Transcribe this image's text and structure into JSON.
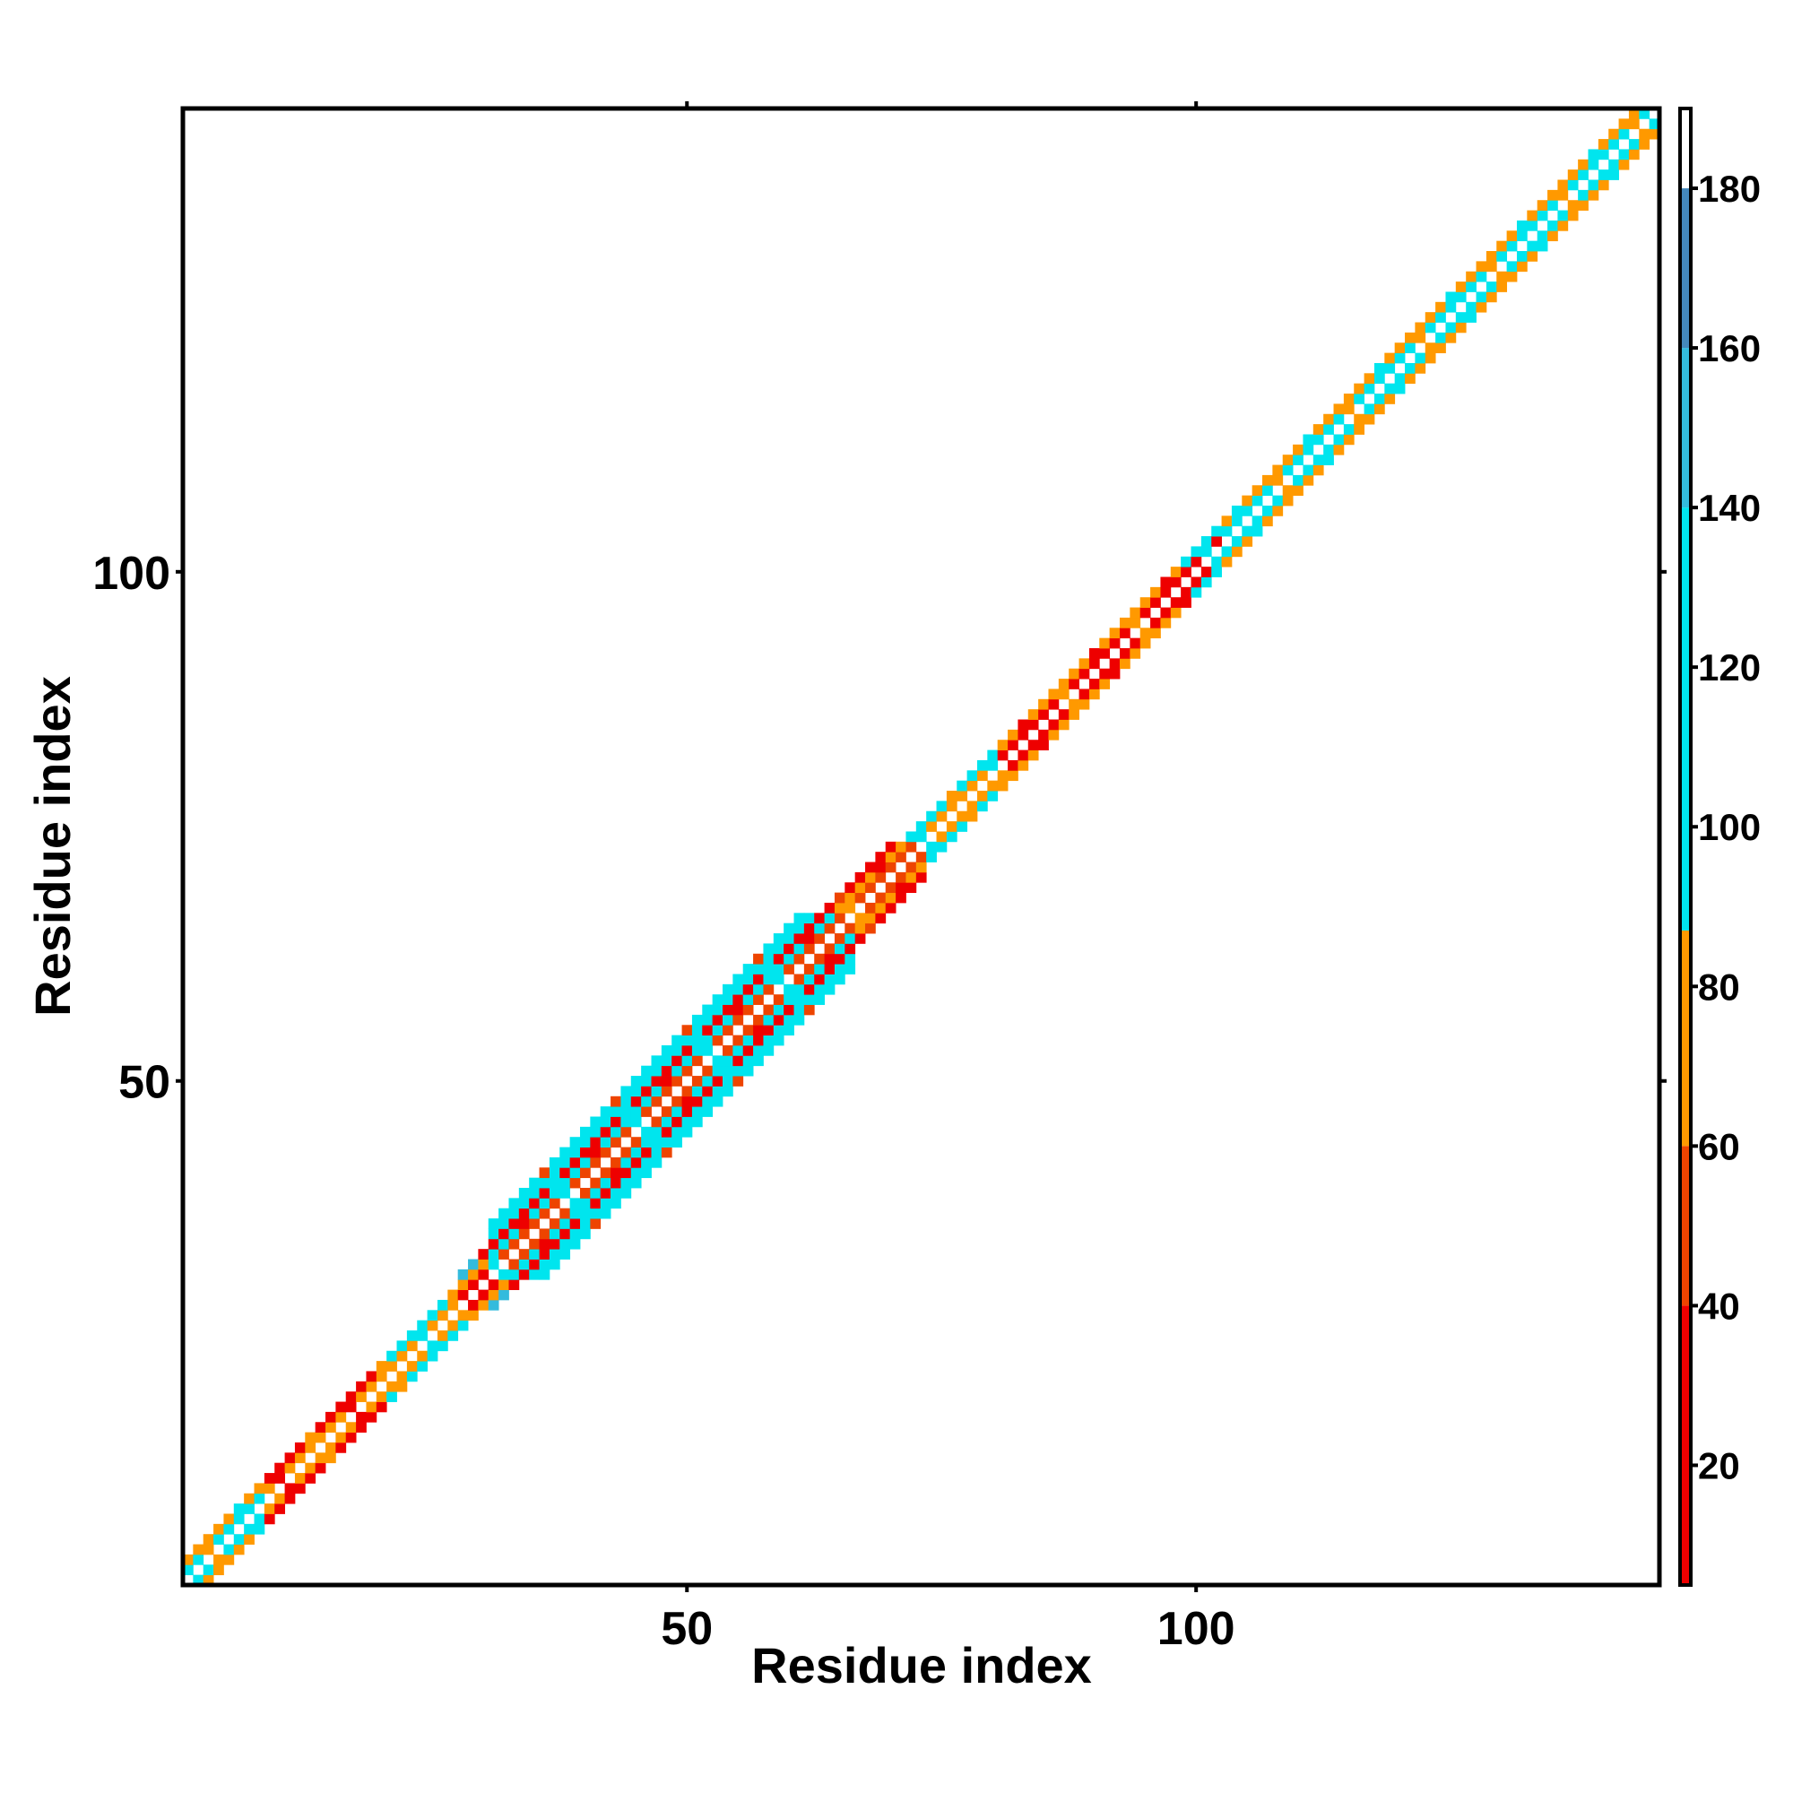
{
  "chart_data": {
    "type": "heatmap",
    "title": "",
    "xlabel": "Residue index",
    "ylabel": "Residue index",
    "xlim": [
      1,
      145
    ],
    "ylim": [
      1,
      145
    ],
    "x_ticks": [
      50,
      100
    ],
    "y_ticks": [
      50,
      100
    ],
    "x_tick_labels": [
      "50",
      "100"
    ],
    "y_tick_labels": [
      "50",
      "100"
    ],
    "grid": false,
    "legend": "colorbar-right",
    "colorbar": {
      "range": [
        5,
        190
      ],
      "ticks": [
        20,
        40,
        60,
        80,
        100,
        120,
        140,
        160,
        180
      ],
      "tick_labels": [
        "20",
        "40",
        "60",
        "80",
        "100",
        "120",
        "140",
        "160",
        "180"
      ],
      "stops": [
        {
          "from": 5,
          "to": 40,
          "color": "#ee0000"
        },
        {
          "from": 40,
          "to": 60,
          "color": "#ee4400"
        },
        {
          "from": 60,
          "to": 87,
          "color": "#ff9900"
        },
        {
          "from": 87,
          "to": 140,
          "color": "#00e5ee"
        },
        {
          "from": 140,
          "to": 160,
          "color": "#33bbdd"
        },
        {
          "from": 160,
          "to": 180,
          "color": "#4488bb"
        },
        {
          "from": 180,
          "to": 190,
          "color": "#ffffff"
        }
      ]
    },
    "band_segments": [
      {
        "from": 1,
        "to": 8,
        "half_width": 2,
        "pattern": [
          "#ffffff",
          "#00e5ee",
          "#ff9900"
        ]
      },
      {
        "from": 8,
        "to": 20,
        "half_width": 2,
        "pattern": [
          "#ffffff",
          "#ff9900",
          "#ee0000"
        ]
      },
      {
        "from": 20,
        "to": 27,
        "half_width": 2,
        "pattern": [
          "#ffffff",
          "#ff9900",
          "#00e5ee"
        ]
      },
      {
        "from": 27,
        "to": 30,
        "half_width": 3,
        "pattern": [
          "#ffffff",
          "#ee0000",
          "#ff9900",
          "#33bbdd"
        ]
      },
      {
        "from": 30,
        "to": 66,
        "half_width": 5,
        "pattern": [
          "#ffffff",
          "#ee4400",
          "#00e5ee",
          "#ee0000",
          "#00e5ee",
          "#00e5ee"
        ]
      },
      {
        "from": 66,
        "to": 73,
        "half_width": 3,
        "pattern": [
          "#ffffff",
          "#ee4400",
          "#ff9900",
          "#ee0000"
        ]
      },
      {
        "from": 73,
        "to": 80,
        "half_width": 2,
        "pattern": [
          "#ffffff",
          "#ff9900",
          "#00e5ee"
        ]
      },
      {
        "from": 80,
        "to": 98,
        "half_width": 2,
        "pattern": [
          "#ffffff",
          "#ee0000",
          "#ff9900"
        ]
      },
      {
        "from": 98,
        "to": 102,
        "half_width": 2,
        "pattern": [
          "#ffffff",
          "#ee0000",
          "#00e5ee"
        ]
      },
      {
        "from": 102,
        "to": 145,
        "half_width": 2,
        "pattern": [
          "#ffffff",
          "#00e5ee",
          "#ff9900"
        ]
      }
    ]
  }
}
